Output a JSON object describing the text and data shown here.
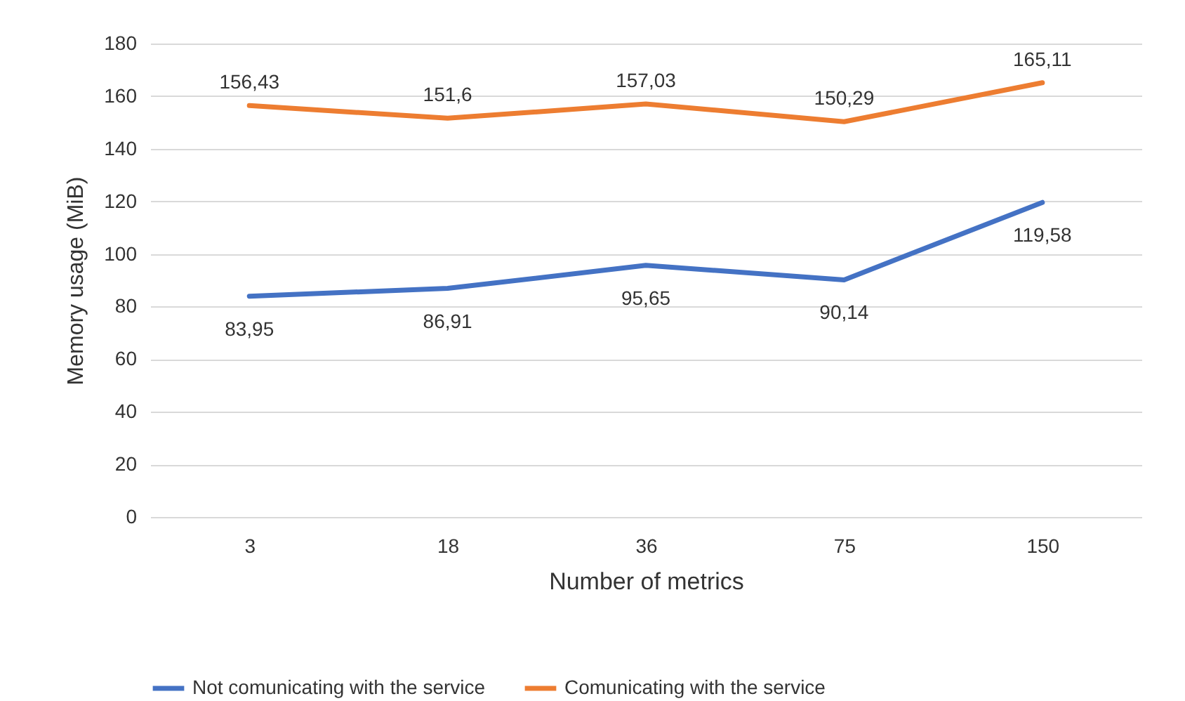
{
  "chart_data": {
    "type": "line",
    "xlabel": "Number of metrics",
    "ylabel": "Memory usage (MiB)",
    "categories": [
      "3",
      "18",
      "36",
      "75",
      "150"
    ],
    "series": [
      {
        "name": "Not comunicating with the service",
        "color": "#4472c4",
        "values": [
          83.95,
          86.91,
          95.65,
          90.14,
          119.58
        ],
        "value_labels": [
          "83,95",
          "86,91",
          "95,65",
          "90,14",
          "119,58"
        ]
      },
      {
        "name": "Comunicating with the service",
        "color": "#ed7d31",
        "values": [
          156.43,
          151.6,
          157.03,
          150.29,
          165.11
        ],
        "value_labels": [
          "156,43",
          "151,6",
          "157,03",
          "150,29",
          "165,11"
        ]
      }
    ],
    "ylim": [
      0,
      180
    ],
    "yticks": [
      0,
      20,
      40,
      60,
      80,
      100,
      120,
      140,
      160,
      180
    ],
    "grid": "y",
    "legend": "bottom"
  }
}
